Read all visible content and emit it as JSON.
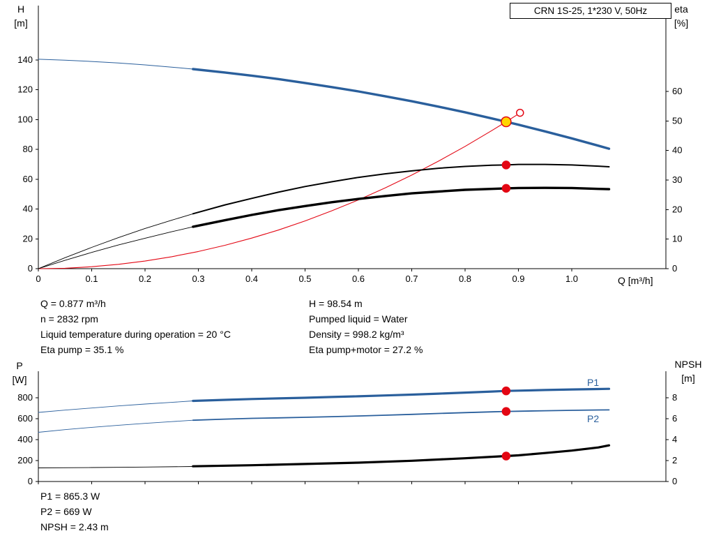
{
  "info": {
    "q": "Q = 0.877 m³/h",
    "n": "n = 2832 rpm",
    "temp": "Liquid temperature during operation = 20 °C",
    "eta_pump": "Eta pump = 35.1 %",
    "h": "H = 98.54 m",
    "liquid": "Pumped liquid = Water",
    "density": "Density = 998.2 kg/m³",
    "eta_total": "Eta pump+motor = 27.2 %"
  },
  "results": {
    "p1": "P1 = 865.3 W",
    "p2": "P2 = 669 W",
    "npsh": "NPSH = 2.43 m"
  },
  "colors": {
    "curve_blue": "#2a5f9c",
    "curve_black": "#000000",
    "marker_red": "#e30613",
    "duty_yellow": "#ffd500"
  },
  "chart_data": [
    {
      "type": "line",
      "title": "CRN 1S-25, 1*230 V, 50Hz",
      "grid": false,
      "legend_position": "none",
      "x_axis": {
        "label": "Q [m³/h]",
        "range": [
          0,
          1.1765
        ],
        "ticks": [
          0,
          0.1,
          0.2,
          0.3,
          0.4,
          0.5,
          0.6,
          0.7,
          0.8,
          0.9,
          1.0
        ],
        "tick_labels": [
          "0",
          "0.1",
          "0.2",
          "0.3",
          "0.4",
          "0.5",
          "0.6",
          "0.7",
          "0.8",
          "0.9",
          "1.0"
        ]
      },
      "y_left": {
        "label": "H",
        "unit": "[m]",
        "range": [
          0,
          176.5
        ],
        "ticks": [
          0,
          20,
          40,
          60,
          80,
          100,
          120,
          140
        ],
        "tick_labels": [
          "0",
          "20",
          "40",
          "60",
          "80",
          "100",
          "120",
          "140"
        ]
      },
      "y_right": {
        "label": "eta",
        "unit": "[%]",
        "range": [
          0,
          89.06
        ],
        "ticks": [
          0,
          10,
          20,
          30,
          40,
          50,
          60
        ],
        "tick_labels": [
          "0",
          "10",
          "20",
          "30",
          "40",
          "50",
          "60"
        ]
      },
      "series": [
        {
          "name": "qh-curve-lead",
          "axis": "left",
          "color": "#2a5f9c",
          "width": 1,
          "points": [
            [
              0,
              140.5
            ],
            [
              0.05,
              139.9
            ],
            [
              0.1,
              139.0
            ],
            [
              0.15,
              138.0
            ],
            [
              0.2,
              136.7
            ],
            [
              0.25,
              135.2
            ],
            [
              0.3,
              133.5
            ]
          ]
        },
        {
          "name": "qh-curve",
          "axis": "left",
          "color": "#2a5f9c",
          "width": 3.4,
          "points": [
            [
              0.29,
              133.9
            ],
            [
              0.35,
              131.6
            ],
            [
              0.4,
              129.5
            ],
            [
              0.45,
              127.2
            ],
            [
              0.5,
              124.6
            ],
            [
              0.55,
              121.8
            ],
            [
              0.6,
              118.9
            ],
            [
              0.65,
              115.7
            ],
            [
              0.7,
              112.3
            ],
            [
              0.75,
              108.7
            ],
            [
              0.8,
              104.9
            ],
            [
              0.85,
              100.8
            ],
            [
              0.877,
              98.54
            ],
            [
              0.9,
              96.6
            ],
            [
              0.95,
              92.1
            ],
            [
              1.0,
              87.4
            ],
            [
              1.05,
              82.5
            ],
            [
              1.07,
              80.5
            ]
          ]
        },
        {
          "name": "system-curve",
          "axis": "left",
          "color": "#e30613",
          "width": 1.1,
          "points": [
            [
              0,
              0
            ],
            [
              0.05,
              0.3
            ],
            [
              0.1,
              1.3
            ],
            [
              0.15,
              2.9
            ],
            [
              0.2,
              5.1
            ],
            [
              0.25,
              8.0
            ],
            [
              0.3,
              11.5
            ],
            [
              0.35,
              15.7
            ],
            [
              0.4,
              20.5
            ],
            [
              0.45,
              25.9
            ],
            [
              0.5,
              32.0
            ],
            [
              0.55,
              38.8
            ],
            [
              0.6,
              46.1
            ],
            [
              0.65,
              54.1
            ],
            [
              0.7,
              62.8
            ],
            [
              0.75,
              72.1
            ],
            [
              0.8,
              82.0
            ],
            [
              0.85,
              92.6
            ],
            [
              0.877,
              98.54
            ],
            [
              0.9,
              103.8
            ]
          ]
        },
        {
          "name": "eta-pump-curve-lead",
          "axis": "right",
          "color": "#000000",
          "width": 0.9,
          "points": [
            [
              0,
              0
            ],
            [
              0.05,
              3.7
            ],
            [
              0.1,
              7.2
            ],
            [
              0.15,
              10.5
            ],
            [
              0.2,
              13.6
            ],
            [
              0.25,
              16.4
            ],
            [
              0.3,
              19.1
            ]
          ]
        },
        {
          "name": "eta-pump-curve",
          "axis": "right",
          "color": "#000000",
          "width": 2,
          "points": [
            [
              0.29,
              18.6
            ],
            [
              0.35,
              21.6
            ],
            [
              0.4,
              23.8
            ],
            [
              0.45,
              25.9
            ],
            [
              0.5,
              27.8
            ],
            [
              0.55,
              29.4
            ],
            [
              0.6,
              30.9
            ],
            [
              0.65,
              32.1
            ],
            [
              0.7,
              33.1
            ],
            [
              0.75,
              34.0
            ],
            [
              0.8,
              34.6
            ],
            [
              0.85,
              35.0
            ],
            [
              0.877,
              35.1
            ],
            [
              0.9,
              35.3
            ],
            [
              0.95,
              35.3
            ],
            [
              1.0,
              35.1
            ],
            [
              1.05,
              34.7
            ],
            [
              1.07,
              34.5
            ]
          ]
        },
        {
          "name": "eta-pump-motor-curve-lead",
          "axis": "right",
          "color": "#000000",
          "width": 0.9,
          "points": [
            [
              0,
              0
            ],
            [
              0.05,
              2.8
            ],
            [
              0.1,
              5.5
            ],
            [
              0.15,
              8.0
            ],
            [
              0.2,
              10.3
            ],
            [
              0.25,
              12.5
            ],
            [
              0.3,
              14.6
            ]
          ]
        },
        {
          "name": "eta-pump-motor-curve",
          "axis": "right",
          "color": "#000000",
          "width": 3.4,
          "points": [
            [
              0.29,
              14.2
            ],
            [
              0.35,
              16.4
            ],
            [
              0.4,
              18.2
            ],
            [
              0.45,
              19.8
            ],
            [
              0.5,
              21.2
            ],
            [
              0.55,
              22.5
            ],
            [
              0.6,
              23.6
            ],
            [
              0.65,
              24.6
            ],
            [
              0.7,
              25.5
            ],
            [
              0.75,
              26.1
            ],
            [
              0.8,
              26.7
            ],
            [
              0.85,
              27.0
            ],
            [
              0.877,
              27.2
            ],
            [
              0.9,
              27.3
            ],
            [
              0.95,
              27.35
            ],
            [
              1.0,
              27.3
            ],
            [
              1.05,
              27.0
            ],
            [
              1.07,
              26.9
            ]
          ]
        }
      ],
      "markers": [
        {
          "name": "duty-point-target",
          "x": 0.903,
          "y": 104.6,
          "axis": "left",
          "r": 5,
          "fill": "#ffffff",
          "stroke": "#e30613",
          "interactable": true
        },
        {
          "name": "duty-point",
          "x": 0.877,
          "y": 98.54,
          "axis": "left",
          "r": 7,
          "fill": "#ffd500",
          "stroke": "#e30613",
          "interactable": true
        },
        {
          "name": "eta-pump-point",
          "x": 0.877,
          "y": 35.1,
          "axis": "right",
          "r": 5.5,
          "fill": "#e30613",
          "stroke": "#e30613",
          "interactable": false
        },
        {
          "name": "eta-pump-motor-point",
          "x": 0.877,
          "y": 27.2,
          "axis": "right",
          "r": 5.5,
          "fill": "#e30613",
          "stroke": "#e30613",
          "interactable": false
        }
      ],
      "annotations": []
    },
    {
      "type": "line",
      "title": "",
      "grid": false,
      "legend_position": "none",
      "x_axis": {
        "label": "",
        "range": [
          0,
          1.1765
        ],
        "ticks": [
          0,
          0.1,
          0.2,
          0.3,
          0.4,
          0.5,
          0.6,
          0.7,
          0.8,
          0.9,
          1.0
        ],
        "tick_labels": []
      },
      "y_left": {
        "label": "P",
        "unit": "[W]",
        "range": [
          0,
          1053
        ],
        "ticks": [
          0,
          200,
          400,
          600,
          800
        ],
        "tick_labels": [
          "0",
          "200",
          "400",
          "600",
          "800"
        ]
      },
      "y_right": {
        "label": "NPSH",
        "unit": "[m]",
        "range": [
          0,
          10.53
        ],
        "ticks": [
          0,
          2,
          4,
          6,
          8
        ],
        "tick_labels": [
          "0",
          "2",
          "4",
          "6",
          "8"
        ]
      },
      "series": [
        {
          "name": "p1-curve-lead",
          "axis": "left",
          "color": "#2a5f9c",
          "width": 0.9,
          "points": [
            [
              0,
              660
            ],
            [
              0.05,
              682
            ],
            [
              0.1,
              702
            ],
            [
              0.15,
              722
            ],
            [
              0.2,
              740
            ],
            [
              0.25,
              756
            ],
            [
              0.29,
              770
            ]
          ]
        },
        {
          "name": "p1-curve",
          "axis": "left",
          "color": "#2a5f9c",
          "width": 3.2,
          "points": [
            [
              0.29,
              770
            ],
            [
              0.35,
              780
            ],
            [
              0.4,
              788
            ],
            [
              0.45,
              794
            ],
            [
              0.5,
              800
            ],
            [
              0.55,
              807
            ],
            [
              0.6,
              814
            ],
            [
              0.65,
              822
            ],
            [
              0.7,
              830
            ],
            [
              0.75,
              839
            ],
            [
              0.8,
              849
            ],
            [
              0.85,
              859
            ],
            [
              0.877,
              865.3
            ],
            [
              0.9,
              868
            ],
            [
              0.95,
              874
            ],
            [
              1.0,
              879
            ],
            [
              1.05,
              883
            ],
            [
              1.07,
              885
            ]
          ]
        },
        {
          "name": "p2-curve-lead",
          "axis": "left",
          "color": "#2a5f9c",
          "width": 0.9,
          "points": [
            [
              0,
              470
            ],
            [
              0.05,
              495
            ],
            [
              0.1,
              517
            ],
            [
              0.15,
              537
            ],
            [
              0.2,
              555
            ],
            [
              0.25,
              572
            ],
            [
              0.29,
              585
            ]
          ]
        },
        {
          "name": "p2-curve",
          "axis": "left",
          "color": "#2a5f9c",
          "width": 1.8,
          "points": [
            [
              0.29,
              585
            ],
            [
              0.35,
              596
            ],
            [
              0.4,
              603
            ],
            [
              0.45,
              608
            ],
            [
              0.5,
              613
            ],
            [
              0.55,
              619
            ],
            [
              0.6,
              626
            ],
            [
              0.65,
              633
            ],
            [
              0.7,
              641
            ],
            [
              0.75,
              650
            ],
            [
              0.8,
              658
            ],
            [
              0.85,
              665
            ],
            [
              0.877,
              669
            ],
            [
              0.9,
              671
            ],
            [
              0.95,
              676
            ],
            [
              1.0,
              680
            ],
            [
              1.05,
              683
            ],
            [
              1.07,
              684
            ]
          ]
        },
        {
          "name": "npsh-curve-lead",
          "axis": "right",
          "color": "#000000",
          "width": 0.9,
          "points": [
            [
              0,
              1.3
            ],
            [
              0.1,
              1.33
            ],
            [
              0.2,
              1.38
            ],
            [
              0.29,
              1.43
            ]
          ]
        },
        {
          "name": "npsh-curve",
          "axis": "right",
          "color": "#000000",
          "width": 3.2,
          "points": [
            [
              0.29,
              1.45
            ],
            [
              0.4,
              1.55
            ],
            [
              0.5,
              1.67
            ],
            [
              0.6,
              1.8
            ],
            [
              0.7,
              1.98
            ],
            [
              0.8,
              2.22
            ],
            [
              0.877,
              2.43
            ],
            [
              0.9,
              2.5
            ],
            [
              0.95,
              2.72
            ],
            [
              1.0,
              2.95
            ],
            [
              1.05,
              3.25
            ],
            [
              1.07,
              3.45
            ]
          ]
        }
      ],
      "markers": [
        {
          "name": "p1-point",
          "x": 0.877,
          "y": 865.3,
          "axis": "left",
          "r": 5.5,
          "fill": "#e30613",
          "stroke": "#e30613",
          "interactable": false
        },
        {
          "name": "p2-point",
          "x": 0.877,
          "y": 669,
          "axis": "left",
          "r": 5.5,
          "fill": "#e30613",
          "stroke": "#e30613",
          "interactable": false
        },
        {
          "name": "npsh-point",
          "x": 0.877,
          "y": 2.43,
          "axis": "right",
          "r": 5.5,
          "fill": "#e30613",
          "stroke": "#e30613",
          "interactable": false
        }
      ],
      "annotations": [
        {
          "text": "P1",
          "x": 1.04,
          "y": 912,
          "axis": "left",
          "color": "#2a5f9c"
        },
        {
          "text": "P2",
          "x": 1.04,
          "y": 567,
          "axis": "left",
          "color": "#2a5f9c"
        }
      ]
    }
  ]
}
